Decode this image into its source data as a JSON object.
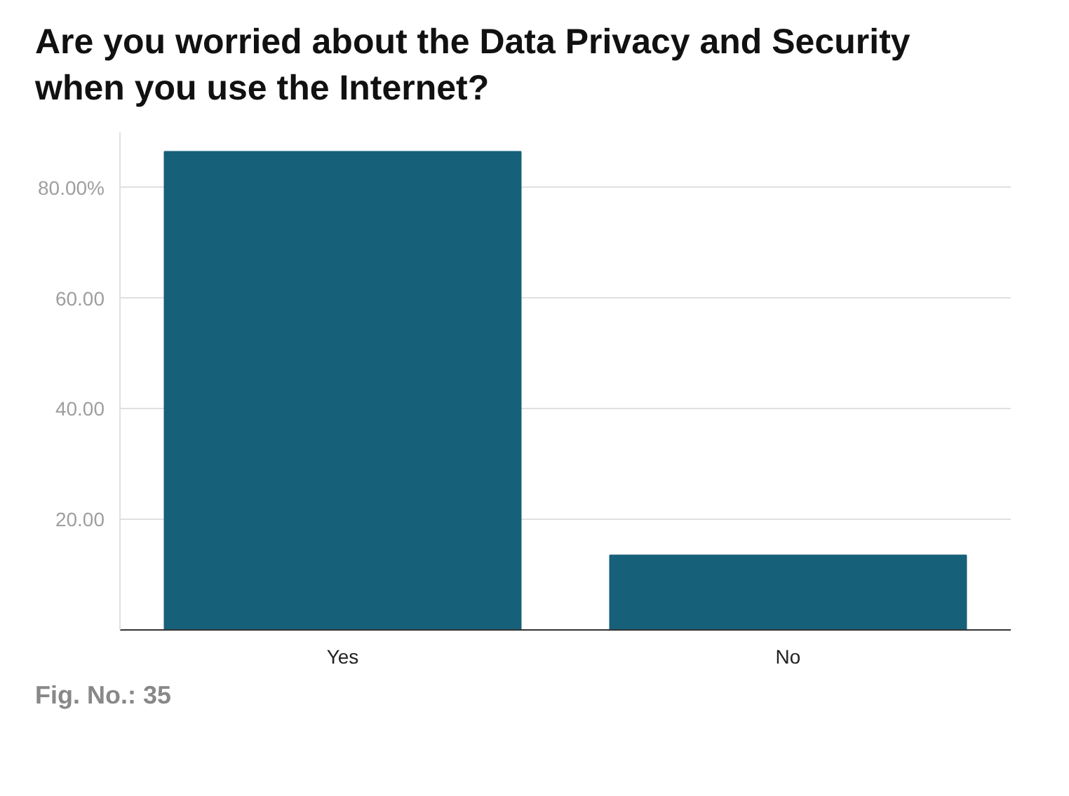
{
  "chart_data": {
    "type": "bar",
    "title": "Are you worried about the Data Privacy and Security when you use the Internet?",
    "categories": [
      "Yes",
      "No"
    ],
    "values": [
      86.5,
      13.5
    ],
    "color": "#17607a",
    "ylim": [
      0,
      90
    ],
    "yticks": [
      {
        "value": 20,
        "label": "20.00"
      },
      {
        "value": 40,
        "label": "40.00"
      },
      {
        "value": 60,
        "label": "60.00"
      },
      {
        "value": 80,
        "label": "80.00%"
      }
    ],
    "grid": "y",
    "annotations": [
      "Fig. No.: 35"
    ]
  }
}
